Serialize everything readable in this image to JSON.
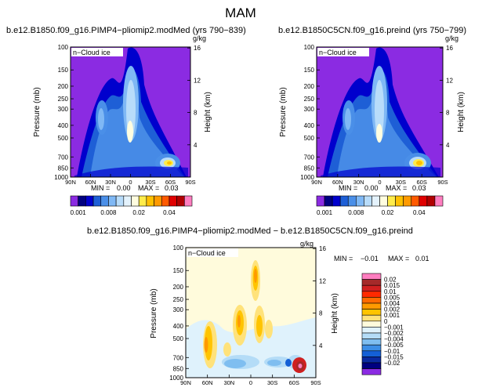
{
  "figure_title": "MAM",
  "chart_data": [
    {
      "type": "contour",
      "title": "b.e12.B1850.f09_g16.PIMP4−pliomip2.modMed (yrs 790−839)",
      "field_label": "n−Cloud ice",
      "units": "g/kg",
      "ylabel": "Pressure (mb)",
      "y2label": "Height (km)",
      "x_ticks": [
        "90N",
        "60N",
        "30N",
        "0",
        "30S",
        "60S",
        "90S"
      ],
      "y_ticks": [
        100,
        150,
        200,
        250,
        300,
        400,
        500,
        700,
        850,
        1000
      ],
      "y2_ticks": [
        4,
        8,
        12,
        16
      ],
      "min_label": "MIN =",
      "min_value": "0.00",
      "max_label": "MAX =",
      "max_value": "0.03"
    },
    {
      "type": "contour",
      "title": "b.e12.B1850C5CN.f09_g16.preind (yrs 750−799)",
      "field_label": "n−Cloud ice",
      "units": "g/kg",
      "ylabel": "Pressure (mb)",
      "y2label": "Height (km)",
      "x_ticks": [
        "90N",
        "60N",
        "30N",
        "0",
        "30S",
        "60S",
        "90S"
      ],
      "y_ticks": [
        100,
        150,
        200,
        250,
        300,
        400,
        500,
        700,
        850,
        1000
      ],
      "y2_ticks": [
        4,
        8,
        12,
        16
      ],
      "min_label": "MIN =",
      "min_value": "0.00",
      "max_label": "MAX =",
      "max_value": "0.03"
    },
    {
      "type": "contour",
      "title": "b.e12.B1850.f09_g16.PIMP4−pliomip2.modMed − b.e12.B1850C5CN.f09_g16.preind",
      "field_label": "n−Cloud ice",
      "units": "g/kg",
      "ylabel": "Pressure (mb)",
      "y2label": "Height (km)",
      "x_ticks": [
        "90N",
        "60N",
        "30N",
        "0",
        "30S",
        "60S",
        "90S"
      ],
      "y_ticks": [
        100,
        150,
        200,
        250,
        300,
        400,
        500,
        700,
        850,
        1000
      ],
      "y2_ticks": [
        4,
        8,
        12,
        16
      ],
      "min_label": "MIN =",
      "min_value": "−0.01",
      "max_label": "MAX =",
      "max_value": "0.01"
    }
  ],
  "colorbar_top": {
    "colors": [
      "#8b2be2",
      "#000080",
      "#0000cd",
      "#1e5fd6",
      "#4a8fe8",
      "#7fb8f5",
      "#b8dcfa",
      "#e4f2fc",
      "#fffde0",
      "#ffec4a",
      "#ffc000",
      "#ff9a00",
      "#ff5a00",
      "#e00000",
      "#b00000",
      "#ff7ec0"
    ],
    "labels": [
      "0.001",
      "0.008",
      "0.02",
      "0.04"
    ]
  },
  "colorbar_diff": {
    "colors": [
      "#ff7ec0",
      "#a52a2a",
      "#d02020",
      "#ff2a00",
      "#ff6a00",
      "#ff9a00",
      "#ffc400",
      "#ffe27a",
      "#fffbdc",
      "#dff2fc",
      "#b4dcf7",
      "#7fbef0",
      "#3c8ee6",
      "#1460d6",
      "#0a2aa0",
      "#000080",
      "#8b2be2"
    ],
    "labels": [
      "0.02",
      "0.015",
      "0.01",
      "0.005",
      "0.004",
      "0.002",
      "0.001",
      "0",
      "−0.001",
      "−0.002",
      "−0.004",
      "−0.005",
      "−0.01",
      "−0.015",
      "−0.02"
    ]
  },
  "colors": {
    "bg_purple": "#8b2be2",
    "bg_diff": "#fffbdc"
  }
}
